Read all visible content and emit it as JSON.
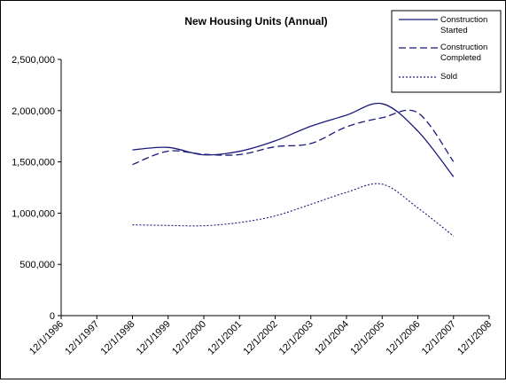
{
  "chart_data": {
    "type": "line",
    "title": "New Housing Units  (Annual)",
    "xlabel": "",
    "ylabel": "",
    "x": [
      "12/1/1996",
      "12/1/1997",
      "12/1/1998",
      "12/1/1999",
      "12/1/2000",
      "12/1/2001",
      "12/1/2002",
      "12/1/2003",
      "12/1/2004",
      "12/1/2005",
      "12/1/2006",
      "12/1/2007",
      "12/1/2008"
    ],
    "y_ticks": [
      "0",
      "500,000",
      "1,000,000",
      "1,500,000",
      "2,000,000",
      "2,500,000"
    ],
    "ylim": [
      0,
      2500000
    ],
    "grid": false,
    "legend_position": "top-right",
    "series": [
      {
        "name": "Construction Started",
        "style": "solid",
        "color": "#1a1a7a",
        "x": [
          "12/1/1998",
          "12/1/1999",
          "12/1/2000",
          "12/1/2001",
          "12/1/2002",
          "12/1/2003",
          "12/1/2004",
          "12/1/2005",
          "12/1/2006",
          "12/1/2007"
        ],
        "values": [
          1617000,
          1641000,
          1569000,
          1603000,
          1705000,
          1848000,
          1956000,
          2068000,
          1801000,
          1355000
        ]
      },
      {
        "name": "Construction Completed",
        "style": "dashed",
        "color": "#1a1a7a",
        "x": [
          "12/1/1998",
          "12/1/1999",
          "12/1/2000",
          "12/1/2001",
          "12/1/2002",
          "12/1/2003",
          "12/1/2004",
          "12/1/2005",
          "12/1/2006",
          "12/1/2007"
        ],
        "values": [
          1474000,
          1605000,
          1574000,
          1571000,
          1648000,
          1679000,
          1842000,
          1931000,
          1979000,
          1503000
        ]
      },
      {
        "name": "Sold",
        "style": "dotted",
        "color": "#1a1a7a",
        "x": [
          "12/1/1998",
          "12/1/1999",
          "12/1/2000",
          "12/1/2001",
          "12/1/2002",
          "12/1/2003",
          "12/1/2004",
          "12/1/2005",
          "12/1/2006",
          "12/1/2007"
        ],
        "values": [
          886000,
          880000,
          877000,
          908000,
          973000,
          1086000,
          1203000,
          1283000,
          1051000,
          776000
        ]
      }
    ],
    "legend": [
      {
        "line1": "Construction",
        "line2": "Started"
      },
      {
        "line1": "Construction",
        "line2": "Completed"
      },
      {
        "line1": "Sold",
        "line2": ""
      }
    ]
  }
}
